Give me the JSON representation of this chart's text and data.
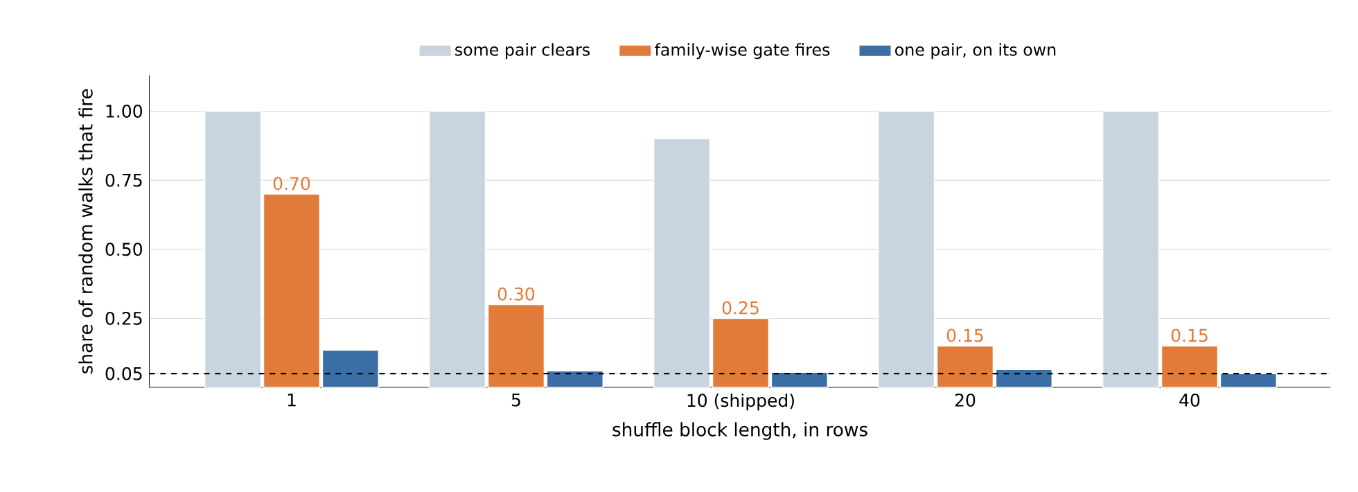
{
  "chart_data": {
    "type": "bar",
    "xlabel": "shuffle block length, in rows",
    "ylabel": "share of random walks that fire",
    "categories": [
      "1",
      "5",
      "10 (shipped)",
      "20",
      "40"
    ],
    "series": [
      {
        "name": "some pair clears",
        "color": "#c8d4e0",
        "values": [
          1.0,
          1.0,
          0.9,
          1.0,
          1.0
        ]
      },
      {
        "name": "family-wise gate fires",
        "color": "#e07b39",
        "values": [
          0.7,
          0.3,
          0.25,
          0.15,
          0.15
        ],
        "value_labels": [
          "0.70",
          "0.30",
          "0.25",
          "0.15",
          "0.15"
        ]
      },
      {
        "name": "one pair, on its own",
        "color": "#3a6ea5",
        "values": [
          0.135,
          0.06,
          0.055,
          0.065,
          0.05
        ]
      }
    ],
    "ylim": [
      0,
      1.13
    ],
    "yticks": [
      0.05,
      0.25,
      {
        "value": 0.5,
        "label": "0.50"
      },
      0.75,
      {
        "value": 1,
        "label": "1.00"
      }
    ],
    "ref_lines": [
      {
        "axis": "y",
        "value": 0.05,
        "color": "#000000",
        "line_style": "dashed"
      }
    ],
    "grid": "y",
    "legend": "top"
  }
}
